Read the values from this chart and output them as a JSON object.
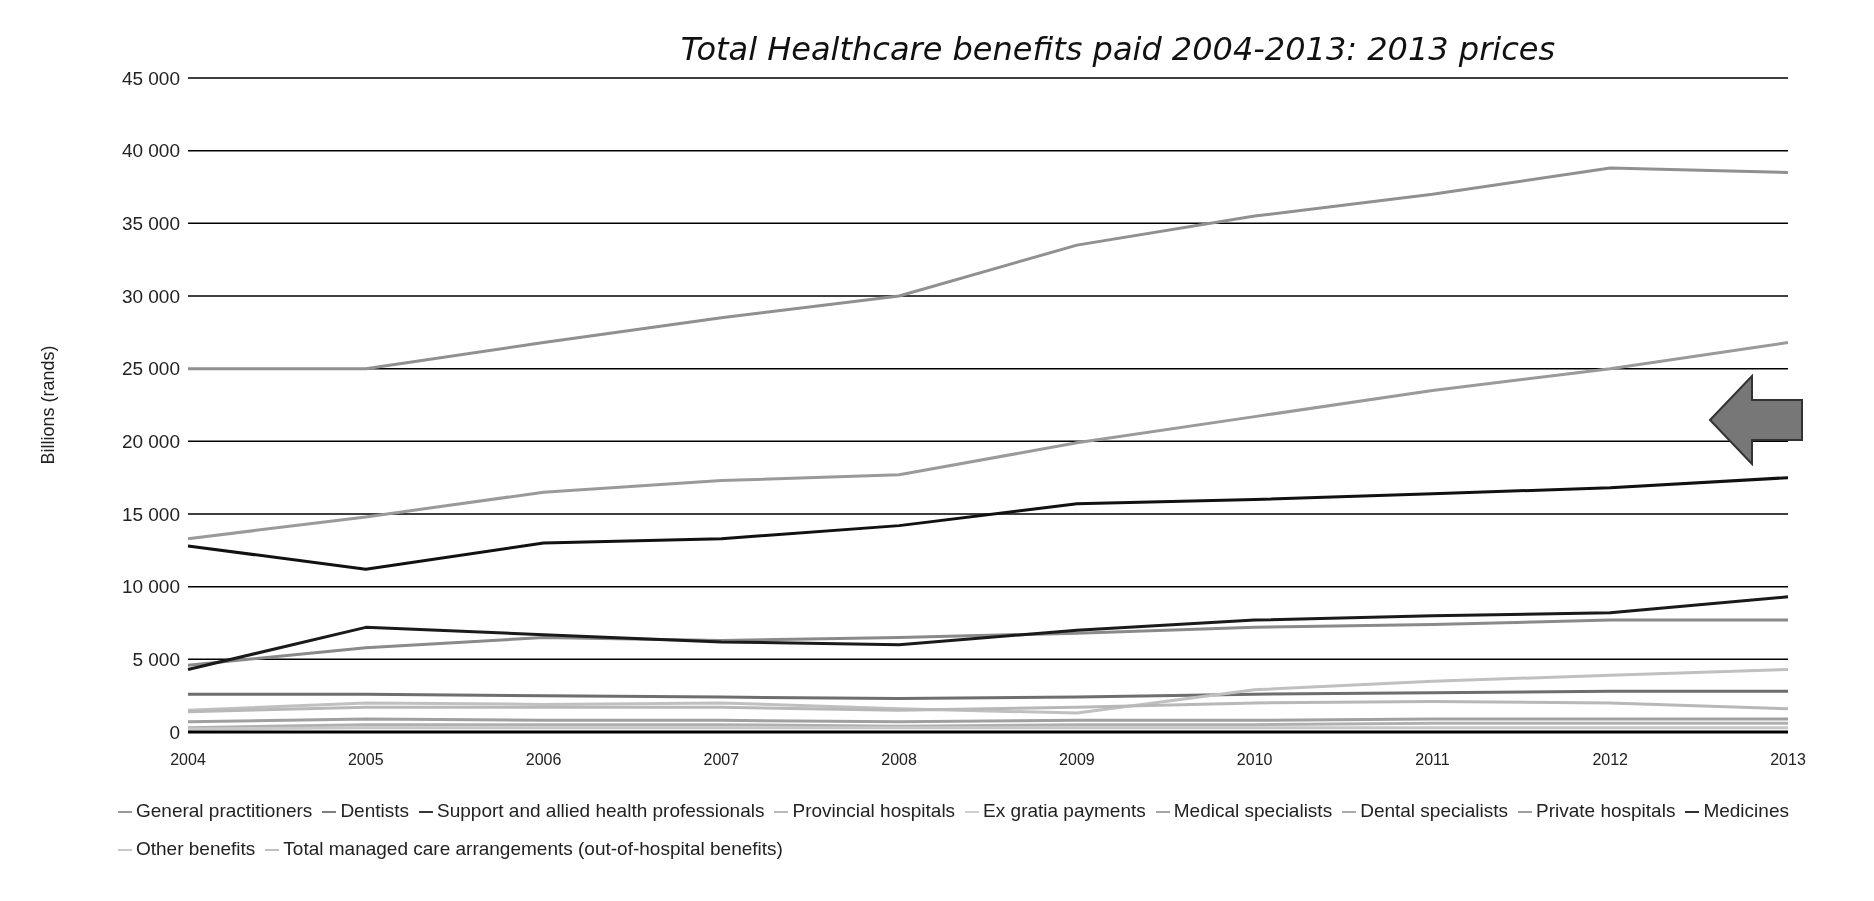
{
  "chart_data": {
    "type": "line",
    "title": "Total Healthcare benefits paid 2004-2013: 2013 prices",
    "ylabel": "Billions (rands)",
    "categories": [
      "2004",
      "2005",
      "2006",
      "2007",
      "2008",
      "2009",
      "2010",
      "2011",
      "2012",
      "2013"
    ],
    "series": [
      {
        "name": "General practitioners",
        "color": "#8a8a8a",
        "values": [
          4600,
          5800,
          6500,
          6300,
          6500,
          6800,
          7200,
          7400,
          7700,
          7700
        ]
      },
      {
        "name": "Dentists",
        "color": "#6e6e6e",
        "values": [
          2600,
          2600,
          2500,
          2400,
          2300,
          2400,
          2600,
          2700,
          2800,
          2800
        ]
      },
      {
        "name": "Support and allied health professionals",
        "color": "#1a1a1a",
        "values": [
          4300,
          7200,
          6700,
          6200,
          6000,
          7000,
          7700,
          8000,
          8200,
          9300
        ]
      },
      {
        "name": "Provincial hospitals",
        "color": "#b0b0b0",
        "values": [
          300,
          500,
          500,
          500,
          400,
          500,
          500,
          600,
          600,
          600
        ]
      },
      {
        "name": "Ex gratia payments",
        "color": "#c8c8c8",
        "values": [
          200,
          300,
          300,
          300,
          300,
          300,
          300,
          300,
          300,
          300
        ]
      },
      {
        "name": "Medical specialists",
        "color": "#9a9a9a",
        "values": [
          13300,
          14800,
          16500,
          17300,
          17700,
          19900,
          21700,
          23500,
          25000,
          26800
        ]
      },
      {
        "name": "Dental specialists",
        "color": "#a0a0a0",
        "values": [
          700,
          900,
          800,
          800,
          700,
          800,
          800,
          900,
          900,
          900
        ]
      },
      {
        "name": "Private hospitals",
        "color": "#909090",
        "values": [
          25000,
          25000,
          26800,
          28500,
          30000,
          33500,
          35500,
          37000,
          38800,
          38500
        ]
      },
      {
        "name": "Medicines",
        "color": "#111111",
        "values": [
          12800,
          11200,
          13000,
          13300,
          14200,
          15700,
          16000,
          16400,
          16800,
          17500
        ]
      },
      {
        "name": "Other benefits",
        "color": "#c0c0c0",
        "values": [
          1500,
          2000,
          1900,
          2000,
          1600,
          1300,
          2900,
          3500,
          3900,
          4300
        ]
      },
      {
        "name": "Total managed care arrangements (out-of-hospital benefits)",
        "color": "#b8b8b8",
        "values": [
          1400,
          1700,
          1700,
          1700,
          1500,
          1700,
          2000,
          2100,
          2000,
          1600
        ]
      }
    ],
    "ylim": [
      0,
      45000
    ],
    "yticks": [
      {
        "value": 0,
        "label": "0"
      },
      {
        "value": 5000,
        "label": "5 000"
      },
      {
        "value": 10000,
        "label": "10 000"
      },
      {
        "value": 15000,
        "label": "15 000"
      },
      {
        "value": 20000,
        "label": "20 000"
      },
      {
        "value": 25000,
        "label": "25 000"
      },
      {
        "value": 30000,
        "label": "30 000"
      },
      {
        "value": 35000,
        "label": "35 000"
      },
      {
        "value": 40000,
        "label": "40 000"
      },
      {
        "value": 45000,
        "label": "45 000"
      }
    ],
    "grid": "y",
    "legend": "bottom",
    "marker": "none",
    "line_style": "solid"
  }
}
